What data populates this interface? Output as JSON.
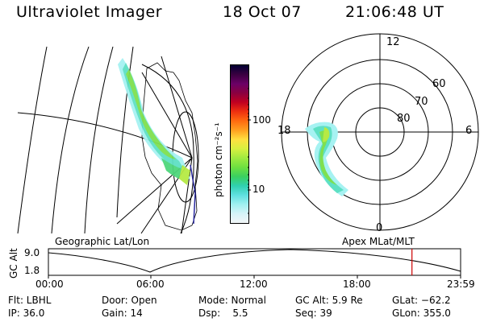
{
  "header": {
    "title": "Ultraviolet Imager",
    "date": "18 Oct 07",
    "time": "21:06:48 UT"
  },
  "colorbar": {
    "label": "photon cm⁻²s⁻¹",
    "ticks": [
      "100",
      "10"
    ],
    "colors": [
      "#000033",
      "#3a0040",
      "#6b0066",
      "#8a0040",
      "#c00020",
      "#ee3010",
      "#ff6a10",
      "#ffa020",
      "#ffe040",
      "#d8f040",
      "#a0ea40",
      "#6ee040",
      "#3ad060",
      "#30d0b0",
      "#60e0e0",
      "#a0f0f0",
      "#d6f4f8",
      "#f2f6f8"
    ]
  },
  "left_map": {
    "label": "Geographic Lat/Lon"
  },
  "right_map": {
    "label": "Apex MLat/MLT",
    "mlt_labels": [
      "12",
      "18",
      "6",
      "0"
    ],
    "mlat_labels": [
      "60",
      "70",
      "80"
    ]
  },
  "orbit": {
    "ylabel": "GC Alt",
    "yticks": [
      "9.0",
      "1.8"
    ],
    "xticks": [
      "00:00",
      "06:00",
      "12:00",
      "18:00",
      "23:59"
    ],
    "marker_color": "#cc0000",
    "marker_time_fraction": 0.882
  },
  "info": {
    "row1": [
      "Flt: LBHL",
      "Door: Open",
      "Mode: Normal",
      "GC Alt: 5.9 Re",
      "GLat: −62.2"
    ],
    "row2": [
      "IP: 36.0",
      "Gain: 14",
      "Dsp:    5.5",
      "Seq: 39",
      "GLon: 355.0"
    ]
  }
}
